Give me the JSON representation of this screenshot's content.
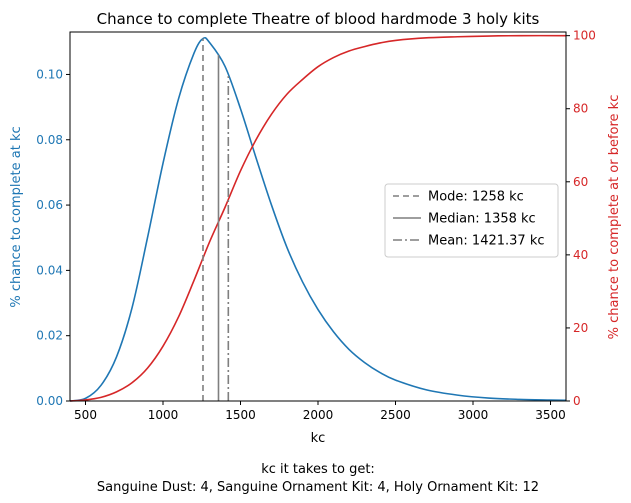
{
  "chart_data": {
    "type": "line",
    "title": "Chance to complete Theatre of blood hardmode 3 holy kits",
    "xlabel": "kc",
    "xlim": [
      400,
      3600
    ],
    "x_ticks": [
      500,
      1000,
      1500,
      2000,
      2500,
      3000,
      3500
    ],
    "left_axis": {
      "label": "% chance to complete at kc",
      "color": "#1f77b4",
      "ylim": [
        0,
        0.113
      ],
      "ticks": [
        "0.00",
        "0.02",
        "0.04",
        "0.06",
        "0.08",
        "0.10"
      ]
    },
    "right_axis": {
      "label": "% chance to complete at or before kc",
      "color": "#d62728",
      "ylim": [
        0,
        101
      ],
      "ticks": [
        "0",
        "20",
        "40",
        "60",
        "80",
        "100"
      ]
    },
    "series": [
      {
        "axis": "left",
        "color": "#1f77b4",
        "x": [
          400,
          500,
          600,
          700,
          800,
          900,
          1000,
          1100,
          1200,
          1258,
          1300,
          1400,
          1500,
          1600,
          1700,
          1800,
          1900,
          2000,
          2100,
          2200,
          2300,
          2400,
          2500,
          2700,
          2900,
          3100,
          3300,
          3500,
          3600
        ],
        "y": [
          0.0,
          0.0008,
          0.0048,
          0.0135,
          0.0285,
          0.05,
          0.0728,
          0.0925,
          0.1065,
          0.111,
          0.1098,
          0.1025,
          0.0895,
          0.0745,
          0.06,
          0.047,
          0.0365,
          0.028,
          0.0212,
          0.0158,
          0.0118,
          0.0087,
          0.0064,
          0.0034,
          0.0018,
          0.0009,
          0.0005,
          0.0003,
          0.0002
        ]
      },
      {
        "axis": "right",
        "color": "#d62728",
        "x": [
          400,
          500,
          600,
          700,
          800,
          900,
          1000,
          1100,
          1200,
          1300,
          1400,
          1500,
          1600,
          1700,
          1800,
          1900,
          2000,
          2100,
          2200,
          2300,
          2400,
          2500,
          2700,
          2900,
          3100,
          3300,
          3600
        ],
        "y": [
          0.0,
          0.3,
          1.0,
          2.5,
          5.0,
          9.0,
          15.0,
          23.0,
          33.0,
          43.5,
          53.0,
          63.0,
          71.5,
          78.5,
          84.0,
          88.0,
          91.5,
          94.0,
          95.8,
          97.0,
          98.0,
          98.7,
          99.4,
          99.7,
          99.9,
          100.0,
          100.0
        ]
      }
    ],
    "markers": [
      {
        "label": "Mode: 1258 kc",
        "x": 1258,
        "y_top": 0.111,
        "dash": "6,4"
      },
      {
        "label": "Median: 1358 kc",
        "x": 1358,
        "y_top": 0.106,
        "dash": ""
      },
      {
        "label": "Mean: 1421.37 kc",
        "x": 1421.37,
        "y_top": 0.0995,
        "dash": "9,3,2,3"
      }
    ],
    "legend_position": "center-right",
    "footer_lines": [
      "kc it takes to get:",
      "Sanguine Dust: 4,  Sanguine Ornament Kit: 4,  Holy Ornament Kit: 12"
    ]
  }
}
